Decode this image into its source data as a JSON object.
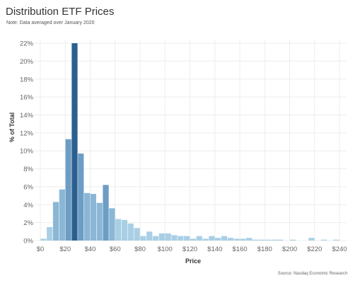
{
  "header": {
    "title": "Distribution ETF Prices",
    "note": "Note: Data averaged over January 2020",
    "source": "Source: Nasdaq Economic Research"
  },
  "colors": {
    "light": "#a9cfe5",
    "mid": "#8bb7d6",
    "medium_dark": "#6c9dc5",
    "dark": "#2b5f8f",
    "grid": "#ededed"
  },
  "chart_data": {
    "type": "bar",
    "title": "Distribution ETF Prices",
    "xlabel": "Price",
    "ylabel": "% of Total",
    "x_ticks": [
      "$0",
      "$20",
      "$40",
      "$60",
      "$80",
      "$100",
      "$120",
      "$140",
      "$160",
      "$180",
      "$200",
      "$220",
      "$240"
    ],
    "y_ticks": [
      "0%",
      "2%",
      "4%",
      "6%",
      "8%",
      "10%",
      "12%",
      "14%",
      "16%",
      "18%",
      "20%",
      "22%"
    ],
    "xlim": [
      0,
      245
    ],
    "ylim": [
      0,
      22.4
    ],
    "bin_width": 5,
    "grid": true,
    "bins": [
      {
        "x0": 0,
        "value": 0.2,
        "shade": "light"
      },
      {
        "x0": 5,
        "value": 1.5,
        "shade": "light"
      },
      {
        "x0": 10,
        "value": 4.3,
        "shade": "mid"
      },
      {
        "x0": 15,
        "value": 5.7,
        "shade": "mid"
      },
      {
        "x0": 20,
        "value": 11.3,
        "shade": "medium_dark"
      },
      {
        "x0": 25,
        "value": 22.0,
        "shade": "dark"
      },
      {
        "x0": 30,
        "value": 9.7,
        "shade": "medium_dark"
      },
      {
        "x0": 35,
        "value": 5.3,
        "shade": "mid"
      },
      {
        "x0": 40,
        "value": 5.2,
        "shade": "mid"
      },
      {
        "x0": 45,
        "value": 4.2,
        "shade": "mid"
      },
      {
        "x0": 50,
        "value": 6.2,
        "shade": "medium_dark"
      },
      {
        "x0": 55,
        "value": 3.6,
        "shade": "mid"
      },
      {
        "x0": 60,
        "value": 2.4,
        "shade": "light"
      },
      {
        "x0": 65,
        "value": 2.3,
        "shade": "light"
      },
      {
        "x0": 70,
        "value": 1.9,
        "shade": "light"
      },
      {
        "x0": 75,
        "value": 1.4,
        "shade": "light"
      },
      {
        "x0": 80,
        "value": 0.5,
        "shade": "light"
      },
      {
        "x0": 85,
        "value": 1.0,
        "shade": "light"
      },
      {
        "x0": 90,
        "value": 0.5,
        "shade": "light"
      },
      {
        "x0": 95,
        "value": 0.8,
        "shade": "light"
      },
      {
        "x0": 100,
        "value": 0.8,
        "shade": "light"
      },
      {
        "x0": 105,
        "value": 0.6,
        "shade": "light"
      },
      {
        "x0": 110,
        "value": 0.5,
        "shade": "light"
      },
      {
        "x0": 115,
        "value": 0.5,
        "shade": "light"
      },
      {
        "x0": 120,
        "value": 0.2,
        "shade": "light"
      },
      {
        "x0": 125,
        "value": 0.5,
        "shade": "light"
      },
      {
        "x0": 130,
        "value": 0.2,
        "shade": "light"
      },
      {
        "x0": 135,
        "value": 0.5,
        "shade": "light"
      },
      {
        "x0": 140,
        "value": 0.3,
        "shade": "light"
      },
      {
        "x0": 145,
        "value": 0.5,
        "shade": "light"
      },
      {
        "x0": 150,
        "value": 0.3,
        "shade": "light"
      },
      {
        "x0": 155,
        "value": 0.2,
        "shade": "light"
      },
      {
        "x0": 160,
        "value": 0.2,
        "shade": "light"
      },
      {
        "x0": 165,
        "value": 0.3,
        "shade": "light"
      },
      {
        "x0": 170,
        "value": 0.1,
        "shade": "light"
      },
      {
        "x0": 175,
        "value": 0.1,
        "shade": "light"
      },
      {
        "x0": 180,
        "value": 0.1,
        "shade": "light"
      },
      {
        "x0": 185,
        "value": 0.1,
        "shade": "light"
      },
      {
        "x0": 190,
        "value": 0.1,
        "shade": "light"
      },
      {
        "x0": 200,
        "value": 0.1,
        "shade": "light"
      },
      {
        "x0": 215,
        "value": 0.3,
        "shade": "light"
      },
      {
        "x0": 225,
        "value": 0.1,
        "shade": "light"
      },
      {
        "x0": 235,
        "value": 0.1,
        "shade": "light"
      }
    ]
  }
}
